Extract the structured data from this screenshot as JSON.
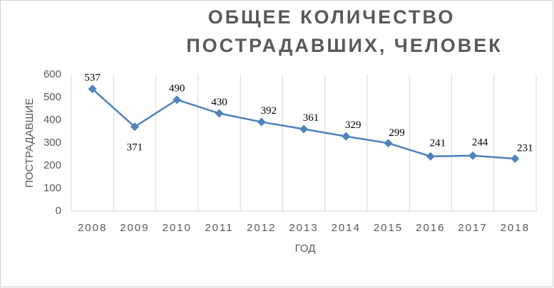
{
  "chart_data": {
    "type": "line",
    "title": [
      "ОБЩЕЕ КОЛИЧЕСТВО",
      "ПОСТРАДАВШИХ, ЧЕЛОВЕК"
    ],
    "x_label": "ГОД",
    "y_label": "ПОСТРАДАВШИЕ",
    "categories": [
      "2008",
      "2009",
      "2010",
      "2011",
      "2012",
      "2013",
      "2014",
      "2015",
      "2016",
      "2017",
      "2018"
    ],
    "series": [
      {
        "name": "Пострадавшие",
        "color": "#4f81bd",
        "values": [
          537,
          371,
          490,
          430,
          392,
          361,
          329,
          299,
          241,
          244,
          231
        ]
      }
    ],
    "ylim": [
      0,
      600
    ],
    "yticks": [
      0,
      100,
      200,
      300,
      400,
      500,
      600
    ],
    "grid": "vertical"
  }
}
